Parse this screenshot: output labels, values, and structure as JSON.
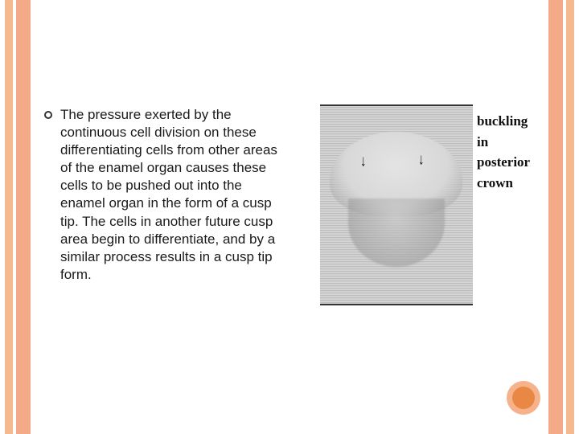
{
  "stripes": {
    "color_light": "#f6b98f",
    "color_dark": "#f4a989"
  },
  "content": {
    "bullet_text": "The pressure exerted by the continuous cell division on these differentiating cells from other areas of the enamel organ causes these cells to be pushed out into the enamel organ in the form of a cusp tip. The cells in another future cusp area begin to differentiate, and by a similar process results in a cusp tip form."
  },
  "figure": {
    "labels": [
      "buckling",
      "in",
      "posterior",
      "crown"
    ]
  },
  "decor": {
    "outer_color": "#f6b28a",
    "inner_color": "#e98844"
  }
}
